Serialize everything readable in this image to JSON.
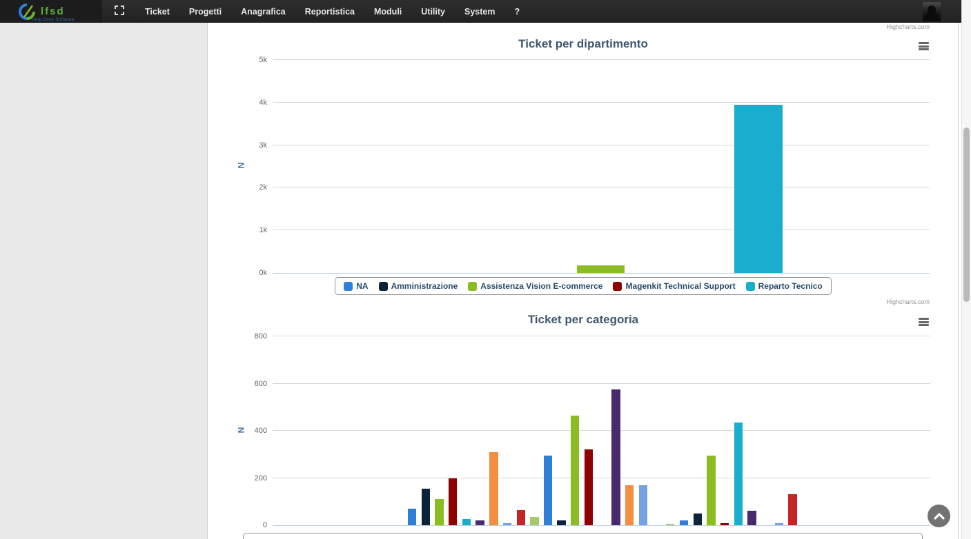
{
  "navbar": {
    "brand": "lfsd",
    "tagline": "Help Desk Software",
    "menu": [
      "Ticket",
      "Progetti",
      "Anagrafica",
      "Reportistica",
      "Moduli",
      "Utility",
      "System",
      "?"
    ]
  },
  "prev_chart_credit": "Highcharts.com",
  "chart_data": [
    {
      "type": "bar",
      "title": "Ticket per dipartimento",
      "ylabel": "N",
      "ylim": [
        0,
        5000
      ],
      "yticks": [
        "0k",
        "1k",
        "2k",
        "3k",
        "4k",
        "5k"
      ],
      "grid": true,
      "legend_position": "bottom",
      "credit": "Highcharts.com",
      "categories": [
        ""
      ],
      "series": [
        {
          "name": "NA",
          "color": "#2f7ed8",
          "values": [
            0
          ]
        },
        {
          "name": "Amministrazione",
          "color": "#0d233a",
          "values": [
            0
          ]
        },
        {
          "name": "Assistenza Vision E-commerce",
          "color": "#8bbc21",
          "values": [
            175
          ]
        },
        {
          "name": "Magenkit Technical Support",
          "color": "#910000",
          "values": [
            0
          ]
        },
        {
          "name": "Reparto Tecnico",
          "color": "#1aadce",
          "values": [
            3950
          ]
        }
      ]
    },
    {
      "type": "bar",
      "title": "Ticket per categoria",
      "ylabel": "N",
      "ylim": [
        0,
        800
      ],
      "yticks": [
        "0",
        "200",
        "400",
        "600",
        "800"
      ],
      "grid": true,
      "legend_position": "bottom (cut off below viewport)",
      "categories": [
        "",
        "",
        ""
      ],
      "series": [
        {
          "color": "#2f7ed8",
          "values": [
            70,
            295,
            20
          ]
        },
        {
          "color": "#0d233a",
          "values": [
            155,
            20,
            50
          ]
        },
        {
          "color": "#8bbc21",
          "values": [
            110,
            465,
            295
          ]
        },
        {
          "color": "#910000",
          "values": [
            200,
            320,
            10
          ]
        },
        {
          "color": "#1aadce",
          "values": [
            25,
            0,
            435
          ]
        },
        {
          "color": "#492970",
          "values": [
            20,
            575,
            60
          ]
        },
        {
          "color": "#f28f43",
          "values": [
            310,
            170,
            0
          ]
        },
        {
          "color": "#77a1e5",
          "values": [
            10,
            170,
            10
          ]
        },
        {
          "color": "#c42525",
          "values": [
            65,
            0,
            130
          ]
        },
        {
          "color": "#a6c96a",
          "values": [
            35,
            5,
            0
          ]
        }
      ]
    }
  ]
}
